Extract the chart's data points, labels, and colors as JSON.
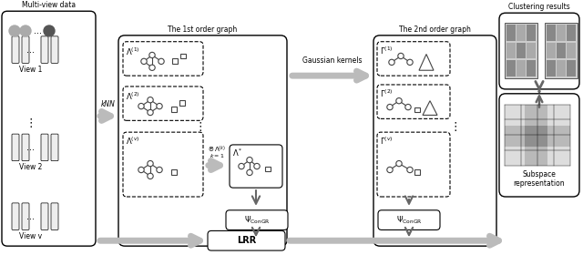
{
  "bg_color": "#ffffff",
  "section_titles": {
    "multiview": "Multi-view data",
    "first_order": "The 1st order graph",
    "second_order": "The 2nd order graph",
    "clustering": "Clustering results"
  },
  "view_labels": [
    "View 1",
    "View 2",
    "View v"
  ],
  "box_labels": {
    "lrr": "LRR",
    "subspace": "Subspace\nrepresentation"
  },
  "arrow_labels": {
    "knn": "kNN",
    "gaussian": "Gaussian kernels"
  }
}
